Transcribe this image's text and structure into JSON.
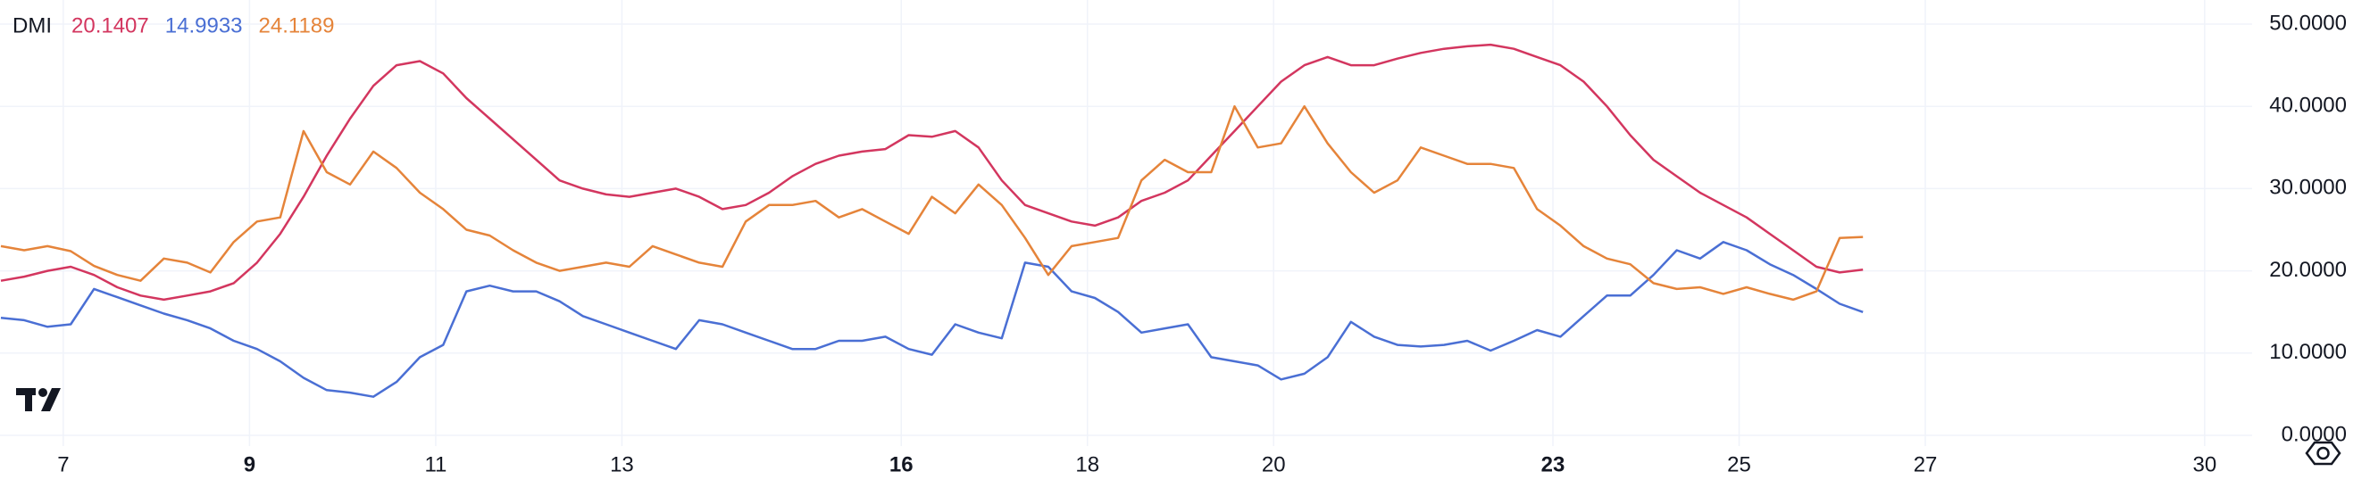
{
  "chart_data": {
    "type": "line",
    "title": "DMI",
    "x": [
      6.33,
      6.58,
      6.83,
      7.08,
      7.33,
      7.58,
      7.83,
      8.08,
      8.33,
      8.58,
      8.83,
      9.08,
      9.33,
      9.58,
      9.83,
      10.08,
      10.33,
      10.58,
      10.83,
      11.08,
      11.33,
      11.58,
      11.83,
      12.08,
      12.33,
      12.58,
      12.83,
      13.08,
      13.33,
      13.58,
      13.83,
      14.08,
      14.33,
      14.58,
      14.83,
      15.08,
      15.33,
      15.58,
      15.83,
      16.08,
      16.33,
      16.58,
      16.83,
      17.08,
      17.33,
      17.58,
      17.83,
      18.08,
      18.33,
      18.58,
      18.83,
      19.08,
      19.33,
      19.58,
      19.83,
      20.08,
      20.33,
      20.58,
      20.83,
      21.08,
      21.33,
      21.58,
      21.83,
      22.08,
      22.33,
      22.58,
      22.83,
      23.08,
      23.33,
      23.58,
      23.83,
      24.08,
      24.33,
      24.58,
      24.83,
      25.08,
      25.33,
      25.58,
      25.83,
      26.08,
      26.33
    ],
    "series": [
      {
        "color": "#d3365f",
        "values": [
          18.8,
          19.3,
          20,
          20.5,
          19.5,
          18,
          17,
          16.5,
          17,
          17.5,
          18.5,
          21,
          24.5,
          29,
          34,
          38.5,
          42.5,
          45,
          45.5,
          44,
          41,
          38.5,
          36,
          33.5,
          31,
          30,
          29.3,
          29,
          29.5,
          30,
          29,
          27.5,
          28,
          29.5,
          31.5,
          33,
          34,
          34.5,
          34.8,
          36.5,
          36.3,
          37,
          35,
          31,
          28,
          27,
          26,
          25.5,
          26.5,
          28.5,
          29.5,
          31,
          34,
          37,
          40,
          43,
          45,
          46,
          45,
          45,
          45.8,
          46.5,
          47,
          47.3,
          47.5,
          47,
          46,
          45,
          43,
          40,
          36.5,
          33.5,
          31.5,
          29.5,
          28,
          26.5,
          24.5,
          22.5,
          20.5,
          19.8,
          20.1407
        ]
      },
      {
        "color": "#4a6fd4",
        "values": [
          14.3,
          14,
          13.2,
          13.5,
          17.8,
          16.8,
          15.8,
          14.8,
          14,
          13,
          11.5,
          10.5,
          9,
          7,
          5.5,
          5.2,
          4.7,
          6.5,
          9.5,
          11,
          17.5,
          18.2,
          17.5,
          17.5,
          16.3,
          14.5,
          13.5,
          12.5,
          11.5,
          10.5,
          14,
          13.5,
          12.5,
          11.5,
          10.5,
          10.5,
          11.5,
          11.5,
          12,
          10.5,
          9.8,
          13.5,
          12.5,
          11.8,
          21,
          20.5,
          17.5,
          16.7,
          15,
          12.5,
          13,
          13.5,
          9.5,
          9,
          8.5,
          6.8,
          7.5,
          9.5,
          13.8,
          12,
          11,
          10.8,
          11,
          11.5,
          10.3,
          11.5,
          12.8,
          12,
          14.5,
          17,
          17,
          19.5,
          22.5,
          21.5,
          23.5,
          22.5,
          20.8,
          19.5,
          17.8,
          16,
          14.9933
        ]
      },
      {
        "color": "#e5843a",
        "values": [
          23,
          22.5,
          23,
          22.4,
          20.6,
          19.5,
          18.8,
          21.5,
          21,
          19.8,
          23.5,
          26,
          26.5,
          37,
          32,
          30.5,
          34.5,
          32.5,
          29.5,
          27.5,
          25,
          24.3,
          22.5,
          21,
          20,
          20.5,
          21,
          20.5,
          23,
          22,
          21,
          20.5,
          26,
          28,
          28,
          28.5,
          26.5,
          27.5,
          26,
          24.5,
          29,
          27,
          30.5,
          28,
          24,
          19.5,
          23,
          23.5,
          24,
          31,
          33.5,
          32,
          32,
          40,
          35,
          35.5,
          40,
          35.5,
          32,
          29.5,
          31,
          35,
          34,
          33,
          33,
          32.5,
          27.5,
          25.5,
          23,
          21.5,
          20.8,
          18.5,
          17.8,
          18,
          17.2,
          18,
          17.2,
          16.5,
          17.5,
          24,
          24.1189
        ]
      }
    ],
    "xlim": [
      6.32,
      30.51
    ],
    "xticks": [
      7,
      9,
      11,
      13,
      16,
      18,
      20,
      23,
      25,
      27,
      30
    ],
    "bold_xticks": [
      9,
      16,
      23
    ],
    "ylim": [
      0,
      50
    ],
    "yticks": [
      {
        "value": 0,
        "label": "0.0000"
      },
      {
        "value": 10,
        "label": "10.0000"
      },
      {
        "value": 20,
        "label": "20.0000"
      },
      {
        "value": 30,
        "label": "30.0000"
      },
      {
        "value": 40,
        "label": "40.0000"
      },
      {
        "value": 50,
        "label": "50.0000"
      }
    ],
    "grid": true
  }
}
